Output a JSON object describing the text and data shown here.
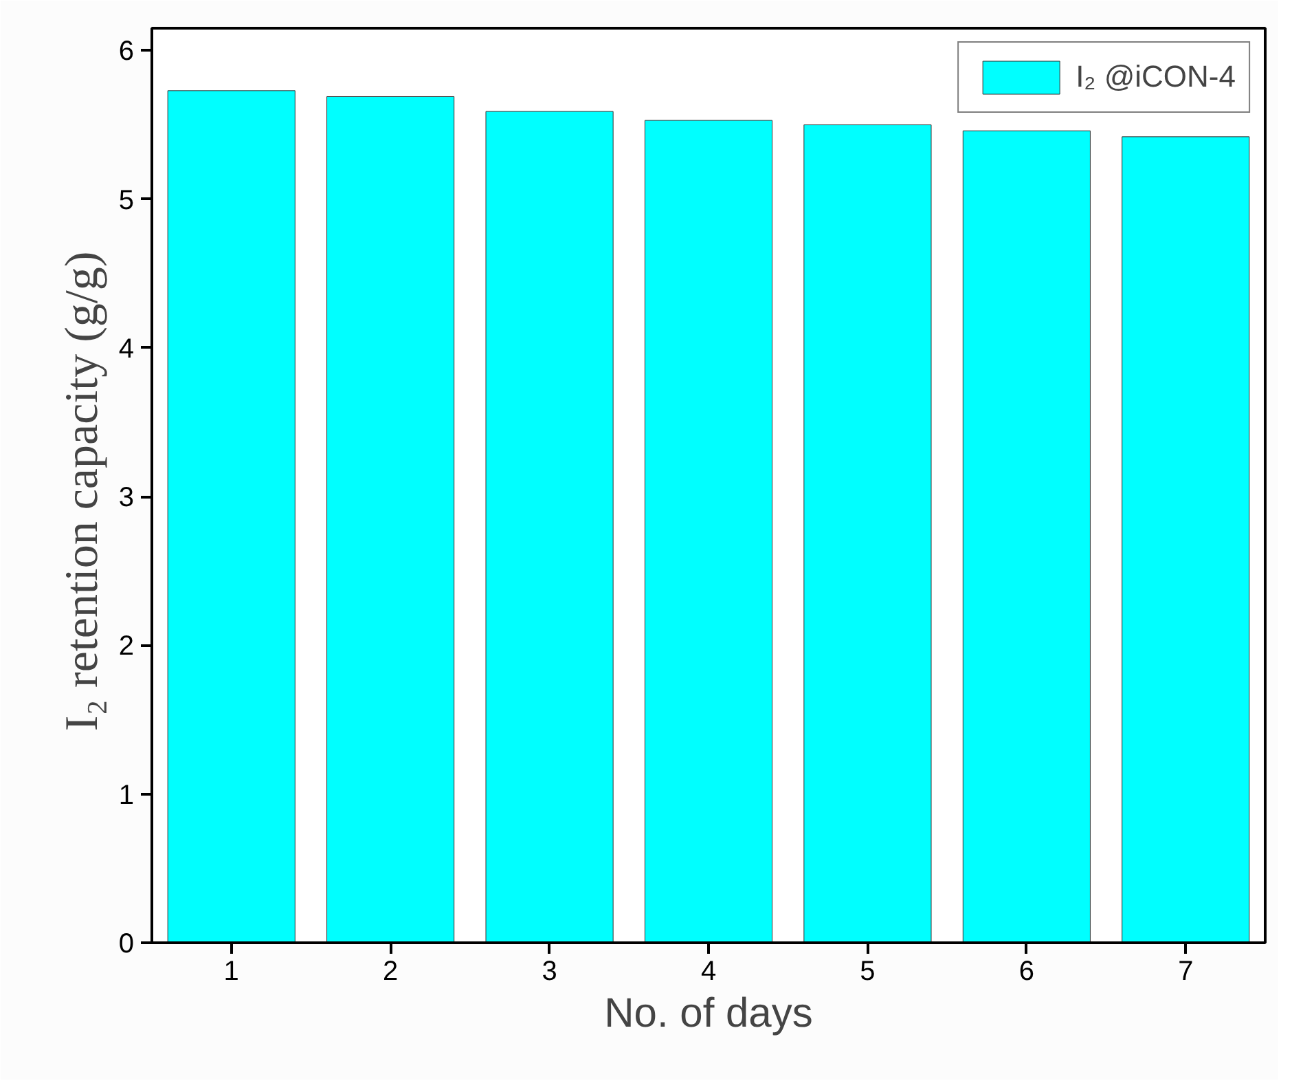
{
  "chart_data": {
    "type": "bar",
    "xlabel": "No. of days",
    "ylabel": "I₂ retention capacity  (g/g)",
    "categories": [
      "1",
      "2",
      "3",
      "4",
      "5",
      "6",
      "7"
    ],
    "series": [
      {
        "name": "I₂ @iCON-4",
        "color": "#00ffff",
        "values": [
          5.73,
          5.69,
          5.59,
          5.53,
          5.5,
          5.46,
          5.42
        ]
      }
    ],
    "ylim": [
      0,
      6.15
    ],
    "yticks": [
      0,
      1,
      2,
      3,
      4,
      5,
      6
    ],
    "grid": false,
    "legend": "top right"
  }
}
